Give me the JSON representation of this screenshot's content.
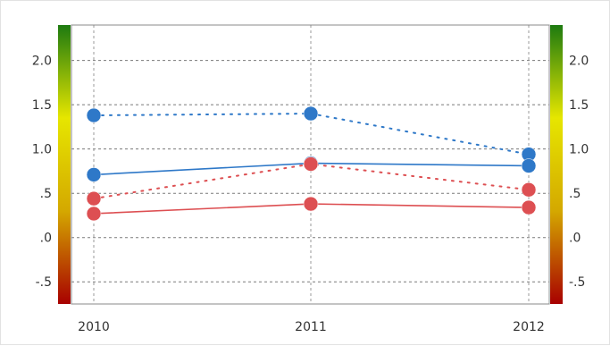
{
  "chart_data": {
    "type": "line",
    "x": [
      "2010",
      "2011",
      "2012"
    ],
    "ylim": [
      -0.75,
      2.4
    ],
    "y_ticks": [
      {
        "value": 2.0,
        "label": "2.0"
      },
      {
        "value": 1.5,
        "label": "1.5"
      },
      {
        "value": 1.0,
        "label": "1.0"
      },
      {
        "value": 0.5,
        "label": ".5"
      },
      {
        "value": 0.0,
        "label": ".0"
      },
      {
        "value": -0.5,
        "label": "-.5"
      }
    ],
    "grid": true,
    "legend": "none",
    "series": [
      {
        "color": "#2e78c8",
        "style": "dashed",
        "values": [
          1.38,
          1.4,
          0.94
        ]
      },
      {
        "color": "#2e78c8",
        "style": "solid",
        "values": [
          0.71,
          0.84,
          0.81
        ]
      },
      {
        "color": "#dd4f52",
        "style": "dashed",
        "values": [
          0.44,
          0.83,
          0.54
        ]
      },
      {
        "color": "#dd4f52",
        "style": "solid",
        "values": [
          0.27,
          0.38,
          0.34
        ]
      }
    ],
    "color_scale": [
      "#a80000",
      "#d4a800",
      "#e6e600",
      "#1d7a10"
    ]
  }
}
